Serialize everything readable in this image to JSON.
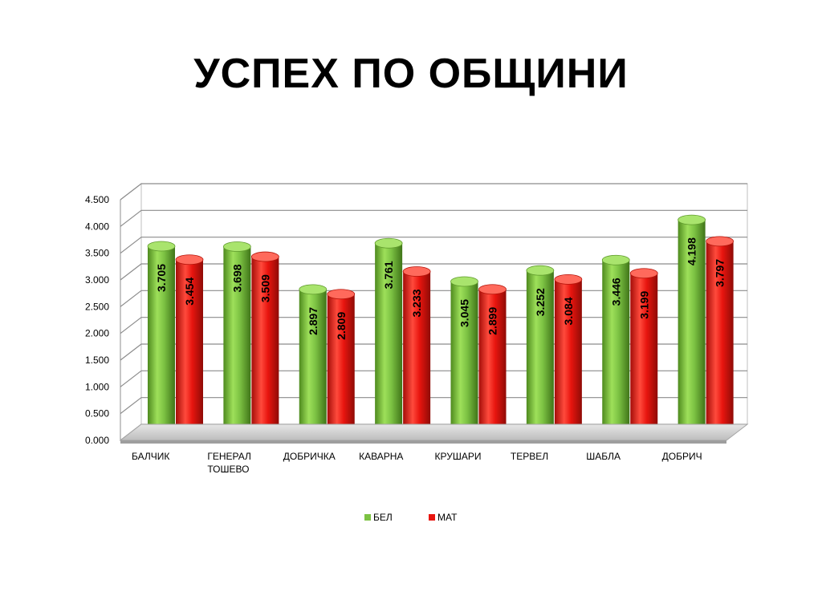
{
  "title": "УСПЕХ ПО ОБЩИНИ",
  "colors": {
    "bel": "#7cc243",
    "mat": "#e8150f"
  },
  "chart_data": {
    "type": "bar",
    "title": "УСПЕХ ПО ОБЩИНИ",
    "categories": [
      "БАЛЧИК",
      "ГЕНЕРАЛ ТОШЕВО",
      "ДОБРИЧКА",
      "КАВАРНА",
      "КРУШАРИ",
      "ТЕРВЕЛ",
      "ШАБЛА",
      "ДОБРИЧ"
    ],
    "series": [
      {
        "name": "БЕЛ",
        "values": [
          3.705,
          3.698,
          2.897,
          3.761,
          3.045,
          3.252,
          3.446,
          4.198
        ],
        "color": "#7cc243"
      },
      {
        "name": "МАТ",
        "values": [
          3.454,
          3.509,
          2.809,
          3.233,
          2.899,
          3.084,
          3.199,
          3.797
        ],
        "color": "#e8150f"
      }
    ],
    "value_labels": [
      [
        "3.705",
        "3.698",
        "2.897",
        "3.761",
        "3.045",
        "3.252",
        "3.446",
        "4.198"
      ],
      [
        "3.454",
        "3.509",
        "2.809",
        "3.233",
        "2.899",
        "3.084",
        "3.199",
        "3.797"
      ]
    ],
    "yticks": [
      "0.000",
      "0.500",
      "1.000",
      "1.500",
      "2.000",
      "2.500",
      "3.000",
      "3.500",
      "4.000",
      "4.500"
    ],
    "ylim": [
      0,
      4.5
    ],
    "grid": true,
    "legend": "bottom",
    "style": "3d-cylinder"
  }
}
